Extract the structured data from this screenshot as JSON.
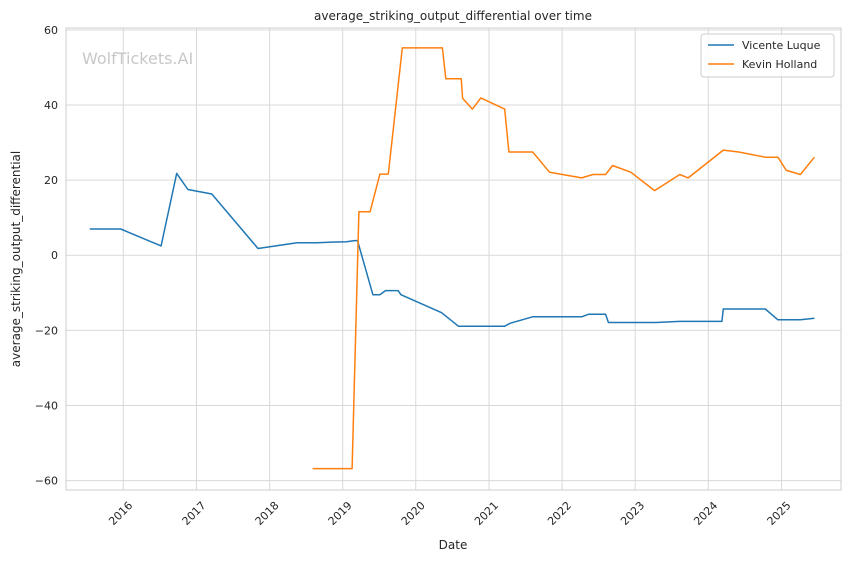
{
  "watermark": "WolfTickets.AI",
  "chart_data": {
    "type": "line",
    "title": "average_striking_output_differential over time",
    "xlabel": "Date",
    "ylabel": "average_striking_output_differential",
    "x_tick_labels": [
      "2016",
      "2017",
      "2018",
      "2019",
      "2020",
      "2021",
      "2022",
      "2023",
      "2024",
      "2025"
    ],
    "y_tick_labels": [
      "60",
      "40",
      "20",
      "0",
      "−20",
      "−40",
      "−60"
    ],
    "ylim": [
      -62.5,
      60.5
    ],
    "xlim": [
      "2015-03-21",
      "2025-10-25"
    ],
    "grid": true,
    "legend_position": "top-right",
    "colors": {
      "Vicente Luque": "#1f77b4",
      "Kevin Holland": "#ff7f0e"
    },
    "series": [
      {
        "name": "Vicente Luque",
        "points": [
          [
            "2015-07-18",
            7.0
          ],
          [
            "2015-12-19",
            7.0
          ],
          [
            "2016-07-08",
            2.5
          ],
          [
            "2016-09-24",
            21.8
          ],
          [
            "2016-11-19",
            17.5
          ],
          [
            "2017-03-18",
            16.3
          ],
          [
            "2017-11-04",
            1.8
          ],
          [
            "2018-05-19",
            3.3
          ],
          [
            "2018-08-25",
            3.3
          ],
          [
            "2018-11-10",
            3.5
          ],
          [
            "2019-01-19",
            3.6
          ],
          [
            "2019-03-02",
            3.9
          ],
          [
            "2019-03-16",
            3.9
          ],
          [
            "2019-06-01",
            -10.5
          ],
          [
            "2019-07-06",
            -10.5
          ],
          [
            "2019-08-03",
            -9.4
          ],
          [
            "2019-10-05",
            -9.4
          ],
          [
            "2019-10-19",
            -10.5
          ],
          [
            "2020-05-09",
            -15.3
          ],
          [
            "2020-08-01",
            -18.9
          ],
          [
            "2021-03-20",
            -18.9
          ],
          [
            "2021-04-17",
            -18.1
          ],
          [
            "2021-08-07",
            -16.4
          ],
          [
            "2022-04-09",
            -16.4
          ],
          [
            "2022-05-14",
            -15.7
          ],
          [
            "2022-08-06",
            -15.7
          ],
          [
            "2022-08-20",
            -17.9
          ],
          [
            "2023-04-15",
            -17.9
          ],
          [
            "2023-08-12",
            -17.6
          ],
          [
            "2024-02-10",
            -17.6
          ],
          [
            "2024-03-09",
            -17.6
          ],
          [
            "2024-03-16",
            -14.3
          ],
          [
            "2024-10-12",
            -14.3
          ],
          [
            "2024-12-14",
            -17.2
          ],
          [
            "2025-04-05",
            -17.2
          ],
          [
            "2025-06-14",
            -16.8
          ]
        ]
      },
      {
        "name": "Kevin Holland",
        "points": [
          [
            "2018-08-04",
            -56.8
          ],
          [
            "2019-02-17",
            -56.8
          ],
          [
            "2019-03-23",
            11.6
          ],
          [
            "2019-05-18",
            11.6
          ],
          [
            "2019-07-06",
            21.6
          ],
          [
            "2019-08-17",
            21.6
          ],
          [
            "2019-10-26",
            55.2
          ],
          [
            "2020-05-13",
            55.2
          ],
          [
            "2020-05-30",
            47.0
          ],
          [
            "2020-08-15",
            47.0
          ],
          [
            "2020-08-22",
            41.8
          ],
          [
            "2020-10-10",
            38.9
          ],
          [
            "2020-11-21",
            41.9
          ],
          [
            "2021-03-20",
            38.9
          ],
          [
            "2021-04-10",
            27.5
          ],
          [
            "2021-08-07",
            27.5
          ],
          [
            "2021-10-30",
            22.1
          ],
          [
            "2022-04-09",
            20.6
          ],
          [
            "2022-06-04",
            21.5
          ],
          [
            "2022-08-06",
            21.5
          ],
          [
            "2022-09-10",
            23.9
          ],
          [
            "2022-12-10",
            22.1
          ],
          [
            "2023-04-08",
            17.2
          ],
          [
            "2023-08-12",
            21.5
          ],
          [
            "2023-09-23",
            20.6
          ],
          [
            "2024-03-16",
            28.0
          ],
          [
            "2024-06-01",
            27.5
          ],
          [
            "2024-10-12",
            26.1
          ],
          [
            "2024-12-14",
            26.1
          ],
          [
            "2025-01-25",
            22.6
          ],
          [
            "2025-04-05",
            21.5
          ],
          [
            "2025-06-14",
            26.1
          ]
        ]
      }
    ]
  }
}
